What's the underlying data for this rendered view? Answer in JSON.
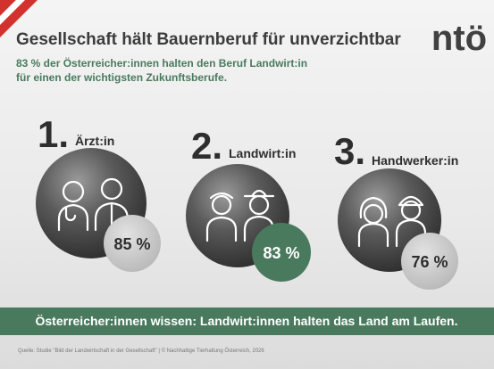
{
  "header": {
    "title": "Gesellschaft hält Bauernberuf für unverzichtbar",
    "logo": "ntö",
    "subtitle": [
      "83 % der Österreicher:innen halten den Beruf Landwirt:in",
      "für einen der wichtigsten Zukunftsberufe."
    ]
  },
  "ranking": [
    {
      "rank": "1.",
      "label": "Ärzt:in",
      "share": "85 %"
    },
    {
      "rank": "2.",
      "label": "Landwirt:in",
      "share": "83 %"
    },
    {
      "rank": "3.",
      "label": "Handwerker:in",
      "share": "76 %"
    }
  ],
  "banner": "Österreicher:innen wissen: Landwirt:innen halten das Land am Laufen.",
  "source": "Quelle:  Studie \"Bild der Landwirtschaft in der Gesellschaft\"  |  © Nachhaltige Tierhaltung Österreich, 2026"
}
